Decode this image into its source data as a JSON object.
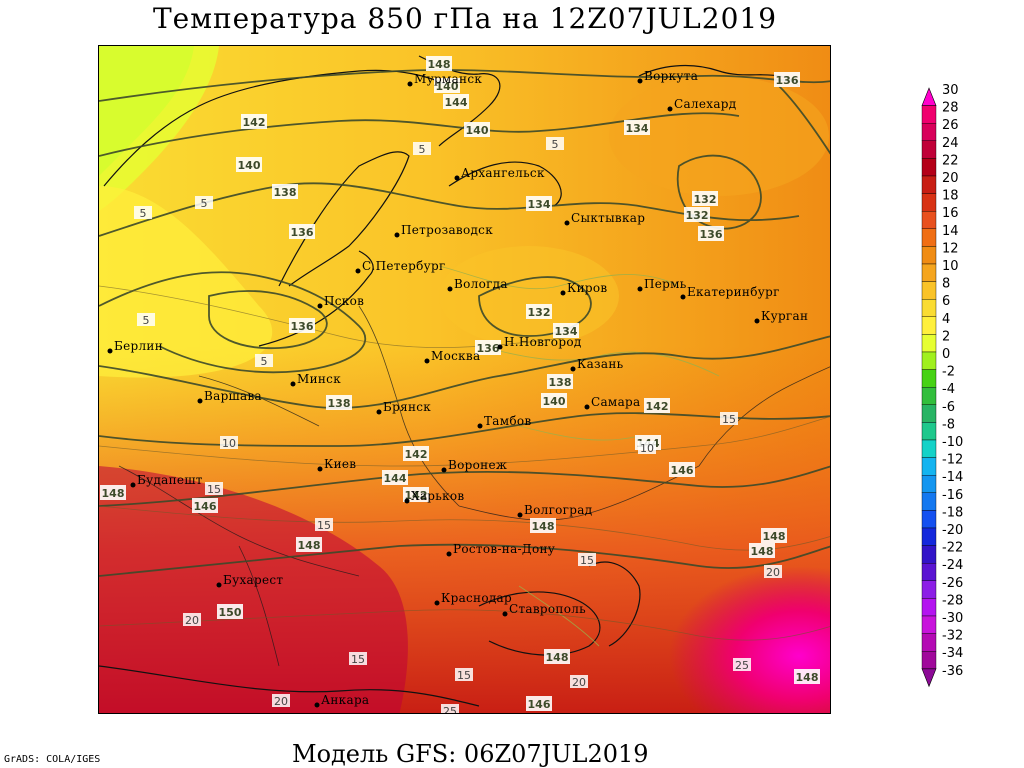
{
  "header": {
    "title": "Температура 850 гПа на 12Z07JUL2019",
    "model": "Модель GFS: 06Z07JUL2019",
    "credit": "GrADS: COLA/IGES"
  },
  "colorbar": {
    "labels": [
      "30",
      "28",
      "26",
      "24",
      "22",
      "20",
      "18",
      "16",
      "14",
      "12",
      "10",
      "8",
      "6",
      "4",
      "2",
      "0",
      "-2",
      "-4",
      "-6",
      "-8",
      "-10",
      "-12",
      "-14",
      "-16",
      "-18",
      "-20",
      "-22",
      "-24",
      "-26",
      "-28",
      "-30",
      "-32",
      "-34",
      "-36"
    ],
    "colors": [
      "#ff00cc",
      "#f0006e",
      "#d8005a",
      "#c00038",
      "#b40018",
      "#c81e14",
      "#d83214",
      "#e8501e",
      "#f06e14",
      "#f08c14",
      "#f5a51e",
      "#fac328",
      "#fadc32",
      "#fff03c",
      "#e6ff32",
      "#a0f01e",
      "#46d214",
      "#32be3c",
      "#28b464",
      "#1ec88c",
      "#14d2c8",
      "#14b4f0",
      "#1496f0",
      "#1478f0",
      "#1450f0",
      "#1428dc",
      "#3214c8",
      "#5a14d2",
      "#8c1ee6",
      "#b414f0",
      "#c814dc",
      "#b40ab4",
      "#a0089b",
      "#8c0a96"
    ]
  },
  "map": {
    "cities": [
      {
        "name": "Мурманск"
      },
      {
        "name": "Воркута"
      },
      {
        "name": "Салехард"
      },
      {
        "name": "Архангельск"
      },
      {
        "name": "Петрозаводск"
      },
      {
        "name": "Сыктывкар"
      },
      {
        "name": "С.Петербург"
      },
      {
        "name": "Вологда"
      },
      {
        "name": "Киров"
      },
      {
        "name": "Пермь"
      },
      {
        "name": "Екатеринбург"
      },
      {
        "name": "Курган"
      },
      {
        "name": "Псков"
      },
      {
        "name": "Берлин"
      },
      {
        "name": "Москва"
      },
      {
        "name": "Н.Новгород"
      },
      {
        "name": "Казань"
      },
      {
        "name": "Варшава"
      },
      {
        "name": "Минск"
      },
      {
        "name": "Брянск"
      },
      {
        "name": "Тамбов"
      },
      {
        "name": "Самара"
      },
      {
        "name": "Киев"
      },
      {
        "name": "Воронеж"
      },
      {
        "name": "Будапешт"
      },
      {
        "name": "Харьков"
      },
      {
        "name": "Волгоград"
      },
      {
        "name": "Ростов-на-Дону"
      },
      {
        "name": "Бухарест"
      },
      {
        "name": "Краснодар"
      },
      {
        "name": "Ставрополь"
      },
      {
        "name": "Анкара"
      }
    ],
    "height_labels": [
      "148",
      "140",
      "144",
      "140",
      "142",
      "140",
      "138",
      "136",
      "136",
      "132",
      "134",
      "136",
      "134",
      "132",
      "136",
      "132",
      "134",
      "136",
      "138",
      "140",
      "142",
      "138",
      "144",
      "146",
      "142",
      "144",
      "142",
      "148",
      "146",
      "148",
      "148",
      "148",
      "150",
      "148",
      "148",
      "146",
      "148"
    ],
    "temp_labels": [
      "5",
      "5",
      "5",
      "5",
      "5",
      "5",
      "10",
      "10",
      "15",
      "15",
      "15",
      "15",
      "15",
      "20",
      "20",
      "20",
      "25",
      "25",
      "20",
      "15"
    ]
  }
}
